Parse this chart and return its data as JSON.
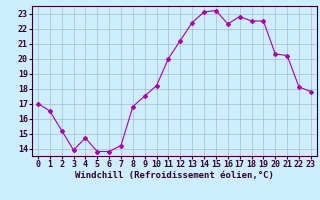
{
  "x": [
    0,
    1,
    2,
    3,
    4,
    5,
    6,
    7,
    8,
    9,
    10,
    11,
    12,
    13,
    14,
    15,
    16,
    17,
    18,
    19,
    20,
    21,
    22,
    23
  ],
  "y": [
    17.0,
    16.5,
    15.2,
    13.9,
    14.7,
    13.8,
    13.8,
    14.2,
    16.8,
    17.5,
    18.2,
    20.0,
    21.2,
    22.4,
    23.1,
    23.2,
    22.3,
    22.8,
    22.5,
    22.5,
    20.3,
    20.2,
    18.1,
    17.8
  ],
  "line_color": "#aa00aa",
  "marker": "D",
  "marker_size": 2,
  "bg_color": "#cceeff",
  "grid_color": "#aabbcc",
  "xlabel": "Windchill (Refroidissement éolien,°C)",
  "xlabel_fontsize": 6.5,
  "tick_fontsize": 6,
  "ylim": [
    13.5,
    23.5
  ],
  "xlim": [
    -0.5,
    23.5
  ],
  "yticks": [
    14,
    15,
    16,
    17,
    18,
    19,
    20,
    21,
    22,
    23
  ],
  "xticks": [
    0,
    1,
    2,
    3,
    4,
    5,
    6,
    7,
    8,
    9,
    10,
    11,
    12,
    13,
    14,
    15,
    16,
    17,
    18,
    19,
    20,
    21,
    22,
    23
  ]
}
